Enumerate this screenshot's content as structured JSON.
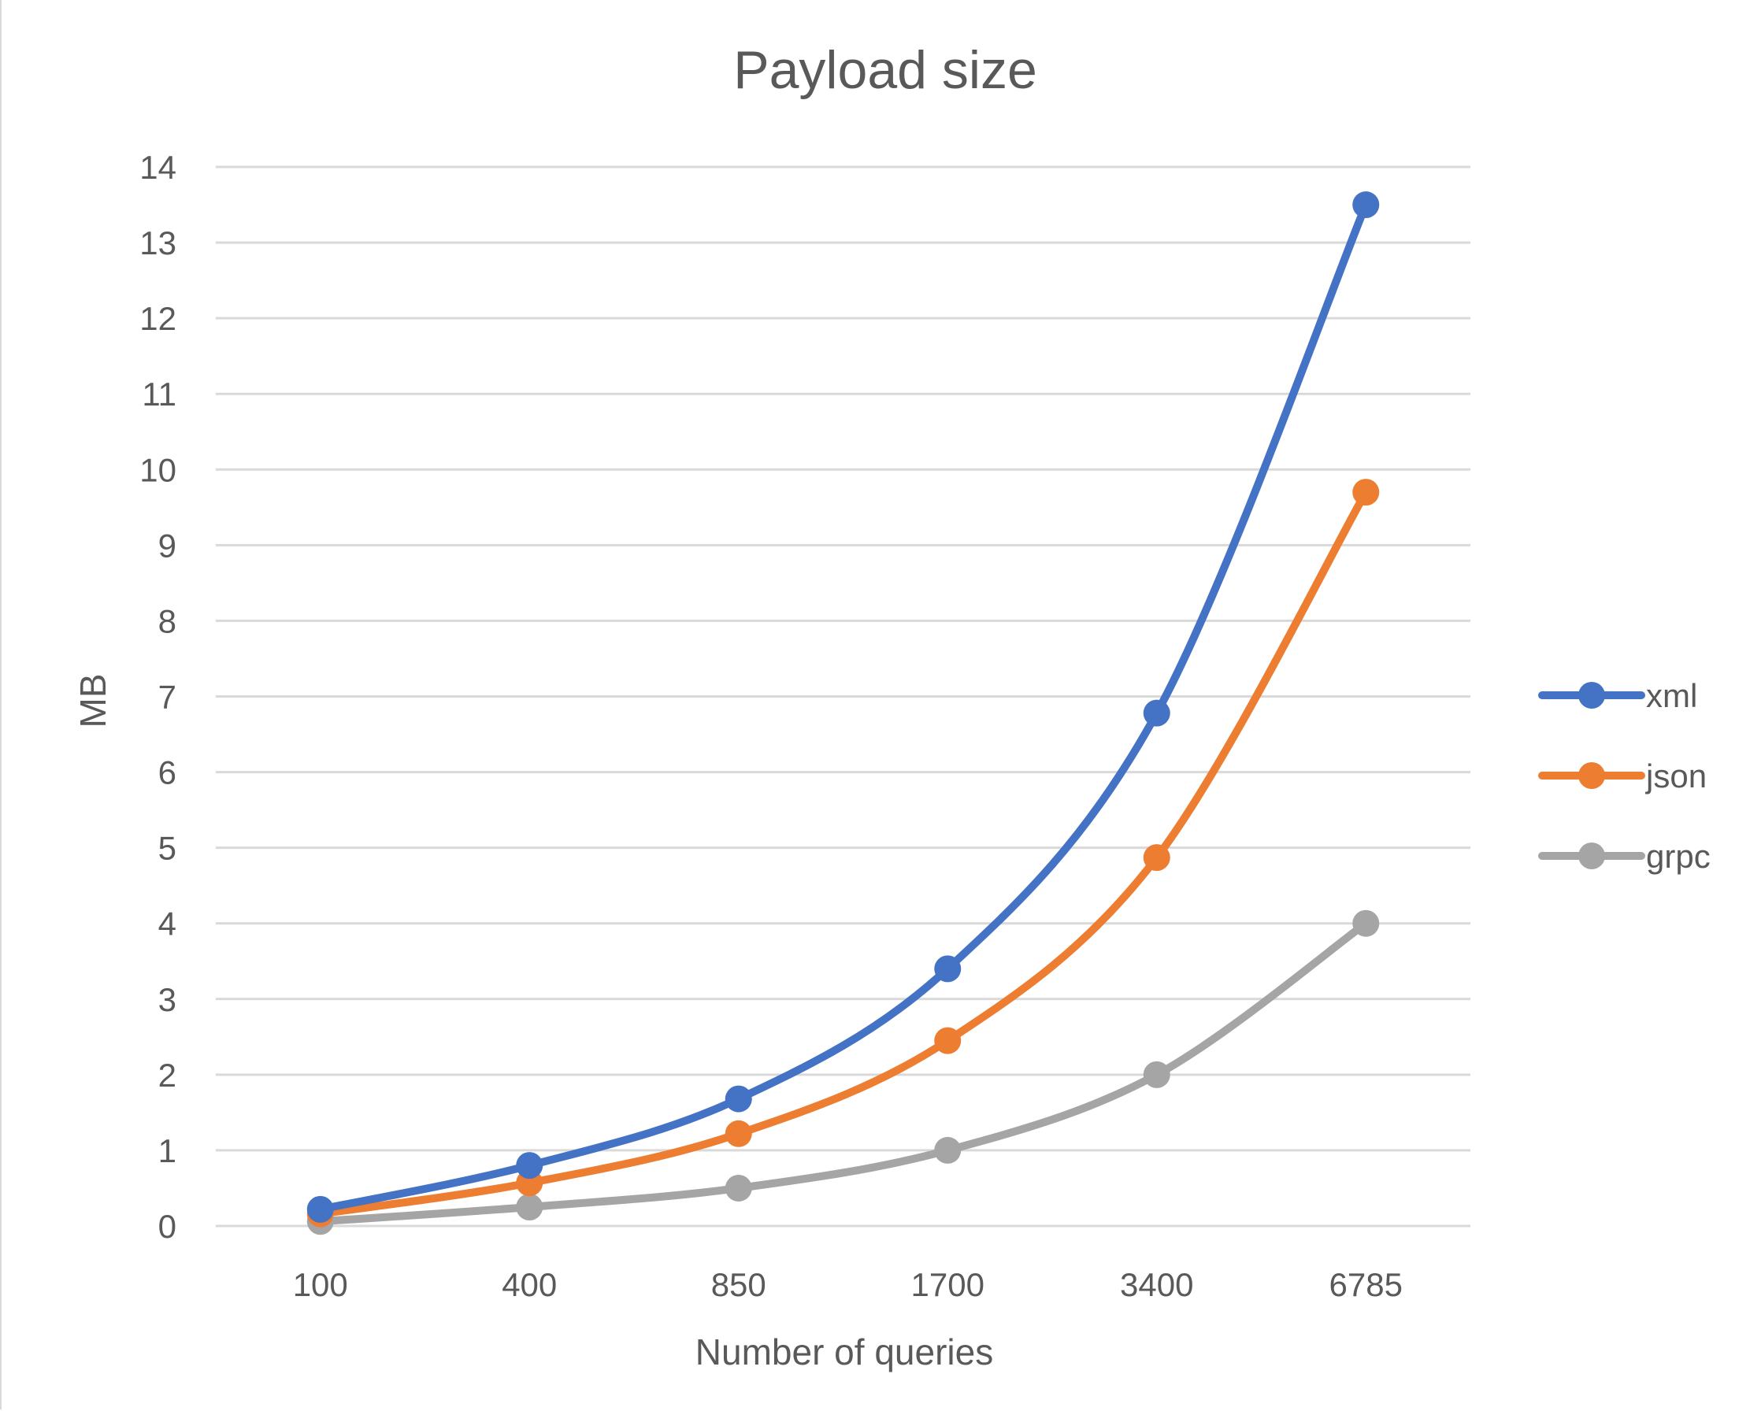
{
  "chart_data": {
    "type": "line",
    "title": "Payload size",
    "xlabel": "Number of queries",
    "ylabel": "MB",
    "categories": [
      "100",
      "400",
      "850",
      "1700",
      "3400",
      "6785"
    ],
    "ylim": [
      0,
      14
    ],
    "yticks": [
      "0",
      "1",
      "2",
      "3",
      "4",
      "5",
      "6",
      "7",
      "8",
      "9",
      "10",
      "11",
      "12",
      "13",
      "14"
    ],
    "grid": true,
    "smooth": true,
    "legend_position": "right",
    "series": [
      {
        "name": "xml",
        "color": "#4472C4",
        "values": [
          0.22,
          0.8,
          1.68,
          3.4,
          6.78,
          13.5
        ]
      },
      {
        "name": "json",
        "color": "#ED7D31",
        "values": [
          0.16,
          0.57,
          1.22,
          2.45,
          4.87,
          9.7
        ]
      },
      {
        "name": "grpc",
        "color": "#A5A5A5",
        "values": [
          0.06,
          0.25,
          0.5,
          1.0,
          2.0,
          4.0
        ]
      }
    ]
  }
}
